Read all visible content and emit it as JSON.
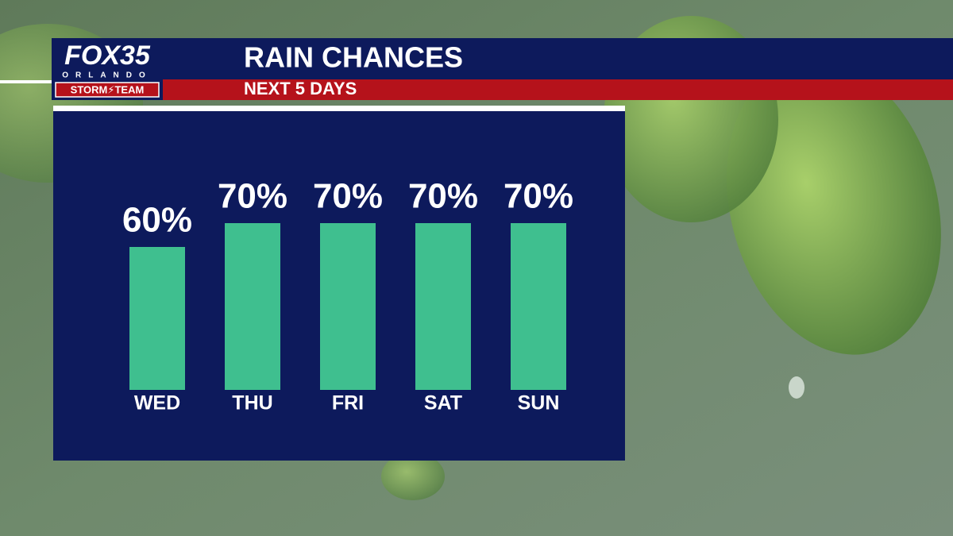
{
  "logo": {
    "brand": "FOX35",
    "city": "ORLANDO",
    "team": "STORM⚡TEAM"
  },
  "chart_data": {
    "type": "bar",
    "title": "RAIN CHANCES",
    "subtitle": "NEXT 5 DAYS",
    "categories": [
      "WED",
      "THU",
      "FRI",
      "SAT",
      "SUN"
    ],
    "values": [
      60,
      70,
      70,
      70,
      70
    ],
    "value_labels": [
      "60%",
      "70%",
      "70%",
      "70%",
      "70%"
    ],
    "color": "#3fbf8f"
  }
}
